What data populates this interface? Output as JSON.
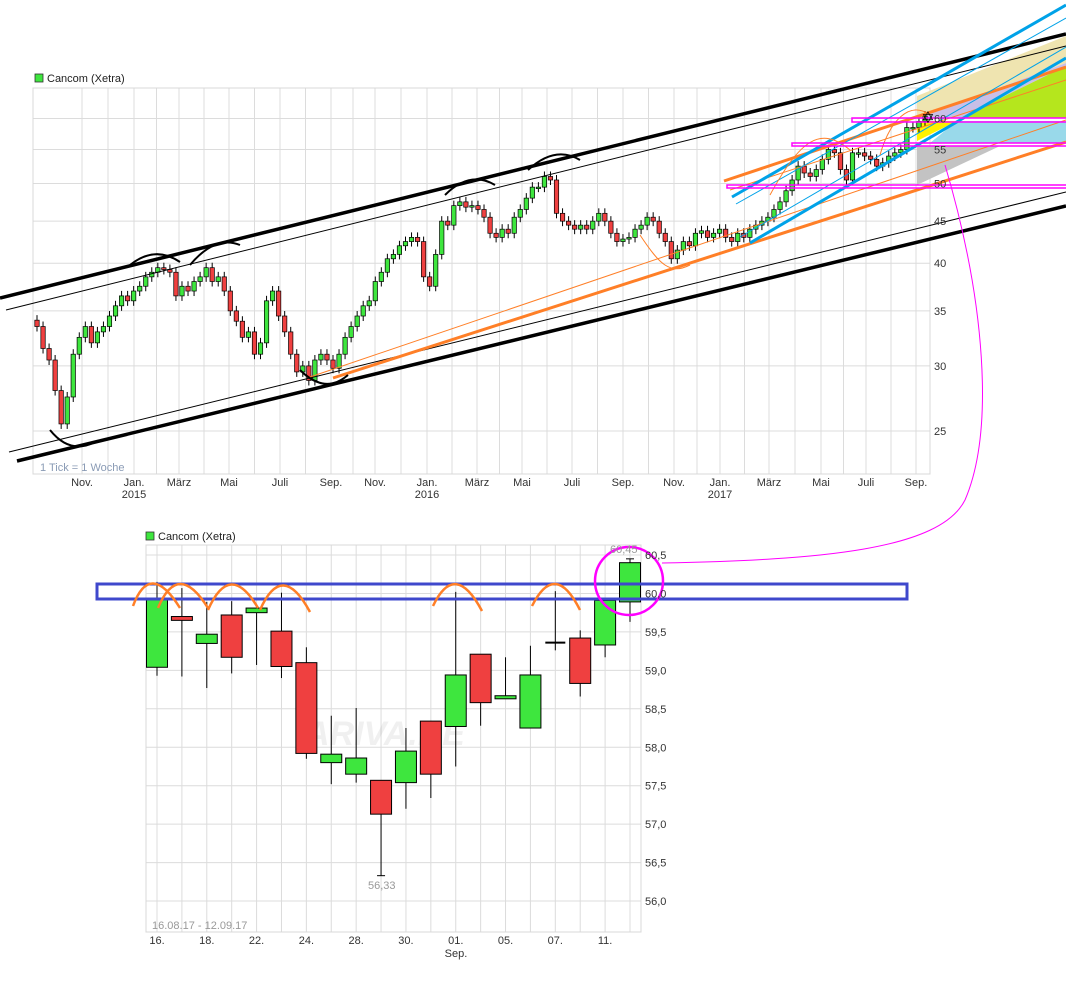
{
  "chart_data": [
    {
      "type": "candlestick",
      "legend": "Cancom (Xetra)",
      "legend_color": "#3ee63e",
      "note": "1 Tick = 1 Woche",
      "y_scale": "log",
      "ylim": [
        21,
        64
      ],
      "y_ticks": [
        "25",
        "30",
        "35",
        "40",
        "45",
        "50",
        "55",
        "60"
      ],
      "y_tick_values": [
        25,
        30,
        35,
        40,
        45,
        50,
        55,
        60
      ],
      "x_ticks": [
        {
          "label": "Nov.",
          "year": ""
        },
        {
          "label": "Jan.",
          "year": "2015"
        },
        {
          "label": "März",
          "year": ""
        },
        {
          "label": "Mai",
          "year": ""
        },
        {
          "label": "Juli",
          "year": ""
        },
        {
          "label": "Sep.",
          "year": ""
        },
        {
          "label": "Nov.",
          "year": ""
        },
        {
          "label": "Jan.",
          "year": "2016"
        },
        {
          "label": "März",
          "year": ""
        },
        {
          "label": "Mai",
          "year": ""
        },
        {
          "label": "Juli",
          "year": ""
        },
        {
          "label": "Sep.",
          "year": ""
        },
        {
          "label": "Nov.",
          "year": ""
        },
        {
          "label": "Jan.",
          "year": "2017"
        },
        {
          "label": "März",
          "year": ""
        },
        {
          "label": "Mai",
          "year": ""
        },
        {
          "label": "Juli",
          "year": ""
        },
        {
          "label": "Sep.",
          "year": ""
        }
      ],
      "weekly_close": [
        33.5,
        31.5,
        30.5,
        28.0,
        25.5,
        27.5,
        31.0,
        32.5,
        33.5,
        32.0,
        33.0,
        33.5,
        34.5,
        35.5,
        36.5,
        36.0,
        37.0,
        37.5,
        38.5,
        39.0,
        39.5,
        39.3,
        39.0,
        36.5,
        37.5,
        37.0,
        38.0,
        38.5,
        39.5,
        38.0,
        38.5,
        37.0,
        35.0,
        34.0,
        32.5,
        33.0,
        31.0,
        32.0,
        36.0,
        37.0,
        34.5,
        33.0,
        31.0,
        29.5,
        30.0,
        28.8,
        30.5,
        31.0,
        30.5,
        29.8,
        31.0,
        32.5,
        33.5,
        34.5,
        35.5,
        36.0,
        38.0,
        39.0,
        40.5,
        41.0,
        42.0,
        42.5,
        43.0,
        42.5,
        38.5,
        37.5,
        41.0,
        45.0,
        44.5,
        47.0,
        47.5,
        46.8,
        47.0,
        46.5,
        45.5,
        43.5,
        43.0,
        44.0,
        43.5,
        45.5,
        46.5,
        48.0,
        49.5,
        49.5,
        51.0,
        50.5,
        46.0,
        45.0,
        44.5,
        44.0,
        44.5,
        44.0,
        45.0,
        46.0,
        45.0,
        43.5,
        42.5,
        42.8,
        43.0,
        44.0,
        44.5,
        45.5,
        45.0,
        43.5,
        42.5,
        40.5,
        41.5,
        42.5,
        42.0,
        43.5,
        43.8,
        43.0,
        43.5,
        44.0,
        43.0,
        42.5,
        43.5,
        43.0,
        44.0,
        44.5,
        45.0,
        45.5,
        46.5,
        47.5,
        49.0,
        50.5,
        52.5,
        51.5,
        51.0,
        52.0,
        53.5,
        55.0,
        54.5,
        52.0,
        50.5,
        54.5,
        54.5,
        54.0,
        53.5,
        52.5,
        53.0,
        54.0,
        54.5,
        55.0,
        58.5,
        58.5,
        59.5,
        60.4
      ],
      "up_color": "#3ee63e",
      "down_color": "#ef4040"
    },
    {
      "type": "candlestick",
      "legend": "Cancom (Xetra)",
      "legend_color": "#3ee63e",
      "date_range": "16.08.17 - 12.09.17",
      "ylim": [
        55.6,
        60.6
      ],
      "y_ticks": [
        "56,0",
        "56,5",
        "57,0",
        "57,5",
        "58,0",
        "58,5",
        "59,0",
        "59,5",
        "60,0",
        "60,5"
      ],
      "y_tick_values": [
        56.0,
        56.5,
        57.0,
        57.5,
        58.0,
        58.5,
        59.0,
        59.5,
        60.0,
        60.5
      ],
      "x_tick_labels": [
        "16.",
        "18.",
        "22.",
        "24.",
        "28.",
        "30.",
        "01.",
        "05.",
        "07.",
        "11."
      ],
      "x_month_label": "Sep.",
      "high_label": "60,45",
      "low_label": "56,33",
      "watermark": "ARIVA.DE",
      "ohlc": [
        [
          59.04,
          60.15,
          58.93,
          59.92
        ],
        [
          59.7,
          60.07,
          58.92,
          59.65
        ],
        [
          59.35,
          59.89,
          58.77,
          59.47
        ],
        [
          59.72,
          59.9,
          58.96,
          59.17
        ],
        [
          59.75,
          59.85,
          59.07,
          59.81
        ],
        [
          59.51,
          60.01,
          58.9,
          59.05
        ],
        [
          59.1,
          59.3,
          57.85,
          57.92
        ],
        [
          57.8,
          58.41,
          57.52,
          57.91
        ],
        [
          57.65,
          58.51,
          57.54,
          57.86
        ],
        [
          57.57,
          57.57,
          56.33,
          57.13
        ],
        [
          57.54,
          58.25,
          57.2,
          57.95
        ],
        [
          58.34,
          58.34,
          57.34,
          57.65
        ],
        [
          58.27,
          60.02,
          57.75,
          58.94
        ],
        [
          59.21,
          59.21,
          58.28,
          58.58
        ],
        [
          58.63,
          59.17,
          58.63,
          58.67
        ],
        [
          58.25,
          59.32,
          58.25,
          58.94
        ],
        [
          59.36,
          60.03,
          59.26,
          59.36
        ],
        [
          59.42,
          59.52,
          58.66,
          58.83
        ],
        [
          59.33,
          59.91,
          59.17,
          59.91
        ],
        [
          59.89,
          60.45,
          59.63,
          60.4
        ]
      ],
      "up_color": "#3ee63e",
      "down_color": "#ef4040"
    }
  ],
  "annotation_colors": {
    "channel": "#000000",
    "trend_orange": "#ff7f27",
    "trend_blue": "#00a2e8",
    "resistance_box": "#3f48cc",
    "highlight": "#ff00ff"
  }
}
